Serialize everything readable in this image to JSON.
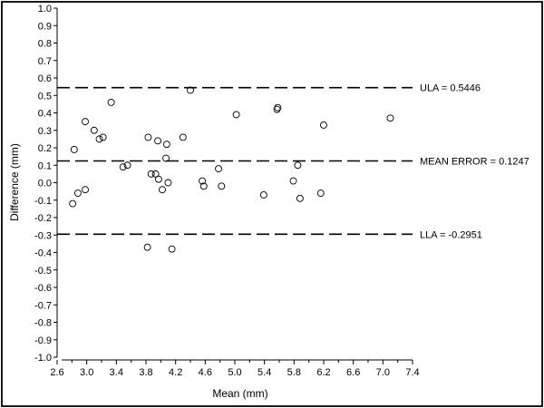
{
  "chart_data": {
    "type": "scatter",
    "title": "",
    "xlabel": "Mean (mm)",
    "ylabel": "Difference (mm)",
    "xlim": [
      2.6,
      7.4
    ],
    "ylim": [
      -1.0,
      1.0
    ],
    "x_ticks": [
      "2.6",
      "3.0",
      "3.4",
      "3.8",
      "4.2",
      "4.6",
      "5.0",
      "5.4",
      "5.8",
      "6.2",
      "6.6",
      "7.0",
      "7.4"
    ],
    "y_ticks": [
      "1.0",
      "0.9",
      "0.8",
      "0.7",
      "0.6",
      "0.5",
      "0.4",
      "0.3",
      "0.2",
      "0.1",
      "0.0",
      "-0.1",
      "-0.2",
      "-0.3",
      "-0.4",
      "-0.5",
      "-0.6",
      "-0.7",
      "-0.8",
      "-0.9",
      "-1.0"
    ],
    "grid": false,
    "reference_lines": [
      {
        "label": "ULA = 0.5446",
        "y": 0.5446
      },
      {
        "label": "MEAN ERROR = 0.1247",
        "y": 0.1247
      },
      {
        "label": "LLA = -0.2951",
        "y": -0.2951
      }
    ],
    "points": [
      {
        "x": 2.81,
        "y": -0.12
      },
      {
        "x": 2.83,
        "y": 0.19
      },
      {
        "x": 2.88,
        "y": -0.06
      },
      {
        "x": 2.98,
        "y": -0.04
      },
      {
        "x": 2.98,
        "y": 0.35
      },
      {
        "x": 3.1,
        "y": 0.3
      },
      {
        "x": 3.17,
        "y": 0.25
      },
      {
        "x": 3.22,
        "y": 0.26
      },
      {
        "x": 3.33,
        "y": 0.46
      },
      {
        "x": 3.49,
        "y": 0.09
      },
      {
        "x": 3.55,
        "y": 0.1
      },
      {
        "x": 3.82,
        "y": -0.37
      },
      {
        "x": 3.83,
        "y": 0.26
      },
      {
        "x": 3.87,
        "y": 0.05
      },
      {
        "x": 3.93,
        "y": 0.05
      },
      {
        "x": 3.96,
        "y": 0.24
      },
      {
        "x": 3.97,
        "y": 0.02
      },
      {
        "x": 4.02,
        "y": -0.04
      },
      {
        "x": 4.07,
        "y": 0.14
      },
      {
        "x": 4.08,
        "y": 0.22
      },
      {
        "x": 4.1,
        "y": 0.0
      },
      {
        "x": 4.15,
        "y": -0.38
      },
      {
        "x": 4.3,
        "y": 0.26
      },
      {
        "x": 4.4,
        "y": 0.53
      },
      {
        "x": 4.56,
        "y": 0.01
      },
      {
        "x": 4.58,
        "y": -0.02
      },
      {
        "x": 4.78,
        "y": 0.08
      },
      {
        "x": 4.82,
        "y": -0.02
      },
      {
        "x": 5.02,
        "y": 0.39
      },
      {
        "x": 5.39,
        "y": -0.07
      },
      {
        "x": 5.57,
        "y": 0.42
      },
      {
        "x": 5.58,
        "y": 0.43
      },
      {
        "x": 5.79,
        "y": 0.01
      },
      {
        "x": 5.85,
        "y": 0.1
      },
      {
        "x": 5.88,
        "y": -0.09
      },
      {
        "x": 6.16,
        "y": -0.06
      },
      {
        "x": 6.2,
        "y": 0.33
      },
      {
        "x": 7.1,
        "y": 0.37
      }
    ]
  }
}
